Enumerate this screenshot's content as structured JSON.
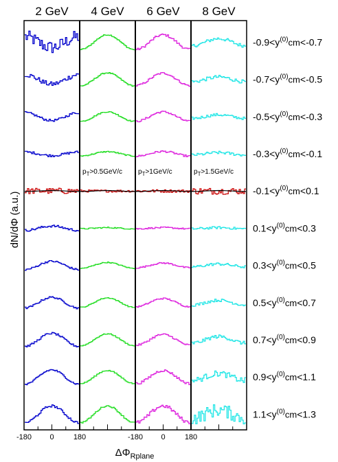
{
  "chart_data": {
    "type": "line",
    "title": "",
    "xlabel": "ΔΦ",
    "xlabel_sub": "Rplane",
    "ylabel": "dN/dΦ (a.u.)",
    "xlim": [
      -180,
      180
    ],
    "x_ticks": [
      "-180",
      "0",
      "180",
      "-180",
      "0",
      "180"
    ],
    "columns": [
      {
        "label": "2 GeV",
        "color": "#0000cc"
      },
      {
        "label": "4 GeV",
        "color": "#22dd22"
      },
      {
        "label": "6 GeV",
        "color": "#dd22dd"
      },
      {
        "label": "8 GeV",
        "color": "#22e6e6"
      }
    ],
    "rows": [
      {
        "label": "-0.9<y(0)cm<-0.7",
        "lo": "-0.9",
        "hi": "-0.7"
      },
      {
        "label": "-0.7<y(0)cm<-0.5",
        "lo": "-0.7",
        "hi": "-0.5"
      },
      {
        "label": "-0.5<y(0)cm<-0.3",
        "lo": "-0.5",
        "hi": "-0.3"
      },
      {
        "label": "-0.3<y(0)cm<-0.1",
        "lo": "-0.3",
        "hi": "-0.1"
      },
      {
        "label": "-0.1<y(0)cm<0.1",
        "lo": "-0.1",
        "hi": "0.1"
      },
      {
        "label": "0.1<y(0)cm<0.3",
        "lo": "0.1",
        "hi": "0.3"
      },
      {
        "label": "0.3<y(0)cm<0.5",
        "lo": "0.3",
        "hi": "0.5"
      },
      {
        "label": "0.5<y(0)cm<0.7",
        "lo": "0.5",
        "hi": "0.7"
      },
      {
        "label": "0.7<y(0)cm<0.9",
        "lo": "0.7",
        "hi": "0.9"
      },
      {
        "label": "0.9<y(0)cm<1.1",
        "lo": "0.9",
        "hi": "1.1"
      },
      {
        "label": "1.1<y(0)cm<1.3",
        "lo": "1.1",
        "hi": "1.3"
      }
    ],
    "midrap_row": 4,
    "midrap_color": "#cc1111",
    "fit_color": "#000000",
    "pt_cuts": [
      {
        "column": 1,
        "text": "pT>0.5GeV/c"
      },
      {
        "column": 2,
        "text": "pT>1GeV/c"
      },
      {
        "column": 3,
        "text": "pT>1.5GeV/c"
      }
    ],
    "v2_amplitude": [
      [
        -0.45,
        0.62,
        0.62,
        0.3
      ],
      [
        -0.4,
        0.55,
        0.52,
        0.2
      ],
      [
        -0.33,
        0.4,
        0.4,
        0.15
      ],
      [
        -0.15,
        0.18,
        0.2,
        0.1
      ],
      [
        0.0,
        0.0,
        0.0,
        0.0
      ],
      [
        0.18,
        0.05,
        0.05,
        0.05
      ],
      [
        0.35,
        0.25,
        0.2,
        0.12
      ],
      [
        0.45,
        0.4,
        0.35,
        0.2
      ],
      [
        0.55,
        0.5,
        0.45,
        0.28
      ],
      [
        0.6,
        0.55,
        0.55,
        0.3
      ],
      [
        0.7,
        0.7,
        0.7,
        0.35
      ]
    ],
    "noise_level": [
      [
        0.55,
        0.05,
        0.1,
        0.15
      ],
      [
        0.2,
        0.05,
        0.08,
        0.15
      ],
      [
        0.1,
        0.05,
        0.08,
        0.12
      ],
      [
        0.1,
        0.05,
        0.08,
        0.12
      ],
      [
        0.25,
        0.1,
        0.12,
        0.28
      ],
      [
        0.1,
        0.05,
        0.06,
        0.1
      ],
      [
        0.08,
        0.04,
        0.06,
        0.12
      ],
      [
        0.08,
        0.04,
        0.06,
        0.12
      ],
      [
        0.08,
        0.04,
        0.08,
        0.15
      ],
      [
        0.08,
        0.05,
        0.1,
        0.25
      ],
      [
        0.1,
        0.06,
        0.15,
        0.55
      ]
    ]
  }
}
